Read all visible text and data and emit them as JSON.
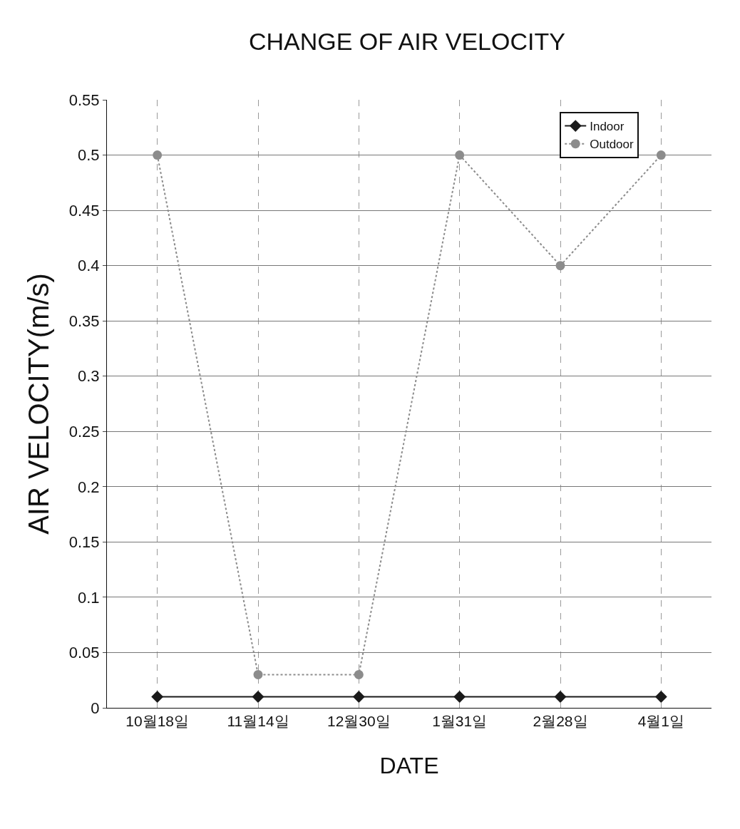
{
  "chart_data": {
    "type": "line",
    "title": "CHANGE OF AIR VELOCITY",
    "xlabel": "DATE",
    "ylabel": "AIR VELOCITY(m/s)",
    "categories": [
      "10월18일",
      "11월14일",
      "12월30일",
      "1월31일",
      "2월28일",
      "4월1일"
    ],
    "series": [
      {
        "name": "Indoor",
        "color": "#1a1a1a",
        "values": [
          0.01,
          0.01,
          0.01,
          0.01,
          0.01,
          0.01
        ],
        "marker": "diamond",
        "line_style": "solid"
      },
      {
        "name": "Outdoor",
        "color": "#8c8c8c",
        "values": [
          0.5,
          0.03,
          0.03,
          0.5,
          0.4,
          0.5
        ],
        "marker": "circle",
        "line_style": "dotted"
      }
    ],
    "ylim": [
      0,
      0.55
    ],
    "yticks": [
      0,
      0.05,
      0.1,
      0.15,
      0.2,
      0.25,
      0.3,
      0.35,
      0.4,
      0.45,
      0.5,
      0.55
    ],
    "grid": true,
    "legend": "top right"
  }
}
